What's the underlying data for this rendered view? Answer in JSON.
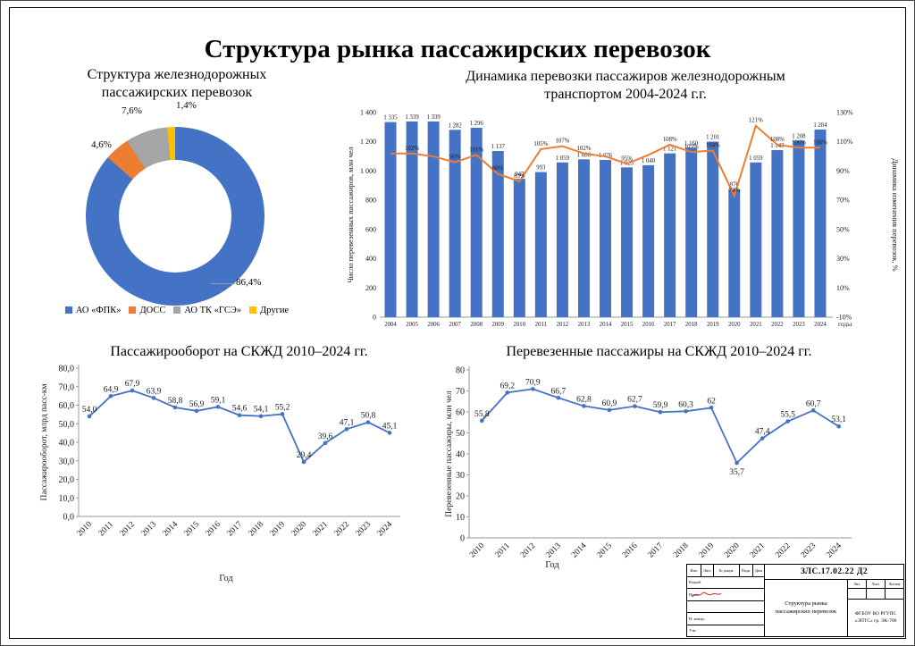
{
  "page": {
    "title": "Структура рынка пассажирских перевозок"
  },
  "chart_data": [
    {
      "type": "pie",
      "subtype": "donut",
      "title": "Структура железнодорожных пассажирских перевозок",
      "title_lines": [
        "Структура железнодорожных",
        "пассажирских перевозок"
      ],
      "labels": [
        "АО «ФПК»",
        "ДОСС",
        "АО ТК «ГСЭ»",
        "Другие"
      ],
      "values": [
        86.4,
        4.6,
        7.6,
        1.4
      ],
      "value_labels": [
        "86,4%",
        "4,6%",
        "7,6%",
        "1,4%"
      ],
      "colors": [
        "#4472C4",
        "#ED7D31",
        "#A5A5A5",
        "#FFC000"
      ],
      "legend_position": "bottom"
    },
    {
      "type": "bar",
      "subtype": "bar+line combo, dual axis",
      "title": "Динамика перевозки пассажиров железнодорожным транспортом 2004-2024 г.г.",
      "title_lines": [
        "Динамика перевозки пассажиров железнодорожным",
        "транспортом 2004-2024 г.г."
      ],
      "categories": [
        "2004",
        "2005",
        "2006",
        "2007",
        "2008",
        "2009",
        "2010",
        "2011",
        "2012",
        "2013",
        "2014",
        "2015",
        "2016",
        "2017",
        "2018",
        "2019",
        "2020",
        "2021",
        "2022",
        "2023",
        "2024"
      ],
      "series": [
        {
          "name": "Число перевезенных пассажиров, млн чел",
          "chart": "bar",
          "axis": "left",
          "color": "#4472C4",
          "values": [
            1335,
            1339,
            1339,
            1282,
            1296,
            1137,
            947,
            993,
            1059,
            1080,
            1076,
            1025,
            1040,
            1121,
            1160,
            1201,
            876,
            1059,
            1143,
            1208,
            1284
          ],
          "value_labels": [
            "1 335",
            "1 339",
            "1 339",
            "1 282",
            "1 296",
            "1 137",
            "947",
            "993",
            "1 059",
            "1 080",
            "1 076",
            "1 025",
            "1 040",
            "1 121",
            "1 160",
            "1 201",
            "876",
            "1 059",
            "1 143",
            "1 208",
            "1 284"
          ]
        },
        {
          "name": "Динамика изменения перевозок, %",
          "chart": "line",
          "axis": "right",
          "color": "#ED7D31",
          "values": [
            102,
            102,
            100,
            96,
            101,
            88,
            83,
            105,
            107,
            102,
            100,
            95,
            101,
            108,
            103,
            104,
            73,
            121,
            108,
            106,
            106
          ],
          "value_labels": [
            "",
            "102%",
            "",
            "96%",
            "101%",
            "88%",
            "83%",
            "105%",
            "107%",
            "102%",
            "",
            "95%",
            "",
            "108%",
            "103%",
            "104%",
            "73%",
            "121%",
            "108%",
            "106%",
            "106%"
          ]
        }
      ],
      "left_axis": {
        "title": "Число перевезенных пассажиров, млн чел",
        "min": 0,
        "max": 1400,
        "tick_values": [
          0,
          200,
          400,
          600,
          800,
          1000,
          1200,
          1400
        ],
        "tick_labels": [
          "0",
          "200",
          "400",
          "600",
          "800",
          "1 000",
          "1 200",
          "1 400"
        ]
      },
      "right_axis": {
        "title": "Динамика изменения перевозок, %",
        "min": -10,
        "max": 130,
        "tick_values": [
          -10,
          10,
          30,
          50,
          70,
          90,
          110,
          130
        ],
        "tick_labels": [
          "-10%",
          "10%",
          "30%",
          "50%",
          "70%",
          "90%",
          "110%",
          "130%"
        ]
      },
      "xlabel": "годы"
    },
    {
      "type": "line",
      "title": "Пассажирооборот на СКЖД 2010–2024 гг.",
      "categories": [
        "2010",
        "2011",
        "2012",
        "2013",
        "2014",
        "2015",
        "2016",
        "2017",
        "2018",
        "2019",
        "2020",
        "2021",
        "2022",
        "2023",
        "2024"
      ],
      "values": [
        54.0,
        64.9,
        67.9,
        63.9,
        58.8,
        56.9,
        59.1,
        54.6,
        54.1,
        55.2,
        29.4,
        39.6,
        47.1,
        50.8,
        45.1
      ],
      "value_labels": [
        "54,0",
        "64,9",
        "67,9",
        "63,9",
        "58,8",
        "56,9",
        "59,1",
        "54,6",
        "54,1",
        "55,2",
        "29,4",
        "39,6",
        "47,1",
        "50,8",
        "45,1"
      ],
      "color": "#4472C4",
      "ylim": [
        0,
        80
      ],
      "y_ticks": {
        "values": [
          0,
          10,
          20,
          30,
          40,
          50,
          60,
          70,
          80
        ],
        "labels": [
          "0,0",
          "10,0",
          "20,0",
          "30,0",
          "40,0",
          "50,0",
          "60,0",
          "70,0",
          "80,0"
        ]
      },
      "ylabel": "Пассажирооборот, млрд пасс-км",
      "xlabel": "Год",
      "label_below_indices": []
    },
    {
      "type": "line",
      "title": "Перевезенные пассажиры на СКЖД 2010–2024 гг.",
      "categories": [
        "2010",
        "2011",
        "2012",
        "2013",
        "2014",
        "2015",
        "2016",
        "2017",
        "2018",
        "2019",
        "2020",
        "2021",
        "2022",
        "2023",
        "2024"
      ],
      "values": [
        55.8,
        69.2,
        70.9,
        66.7,
        62.8,
        60.9,
        62.7,
        59.9,
        60.3,
        62,
        35.7,
        47.4,
        55.5,
        60.7,
        53.1
      ],
      "value_labels": [
        "55,8",
        "69,2",
        "70,9",
        "66,7",
        "62,8",
        "60,9",
        "62,7",
        "59,9",
        "60,3",
        "62",
        "35,7",
        "47,4",
        "55,5",
        "60,7",
        "53,1"
      ],
      "color": "#4472C4",
      "ylim": [
        0,
        80
      ],
      "y_ticks": {
        "values": [
          0,
          10,
          20,
          30,
          40,
          50,
          60,
          70,
          80
        ],
        "labels": [
          "0",
          "10",
          "20",
          "30",
          "40",
          "50",
          "60",
          "70",
          "80"
        ]
      },
      "ylabel": "Перевезенные пассажиры, млн чел",
      "xlabel": "Год",
      "label_below_indices": [
        10
      ]
    }
  ],
  "stamp": {
    "code": "ЗЛС.17.02.22 Д2",
    "doc_title_lines": [
      "Структура рынка",
      "пассажирских перевозок"
    ],
    "header_cols": [
      "Изм.",
      "Лист",
      "№ докум.",
      "Подп.",
      "Дата"
    ],
    "rows": [
      "Разраб.",
      "Пров.",
      "",
      "Н. контр.",
      "Утв."
    ],
    "lit_labels": [
      "Лит.",
      "Лист",
      "Листов"
    ],
    "org_lines": [
      "ФГБОУ ВО РГУПС",
      "«ЭПТС» гр. ЭК-700"
    ]
  }
}
